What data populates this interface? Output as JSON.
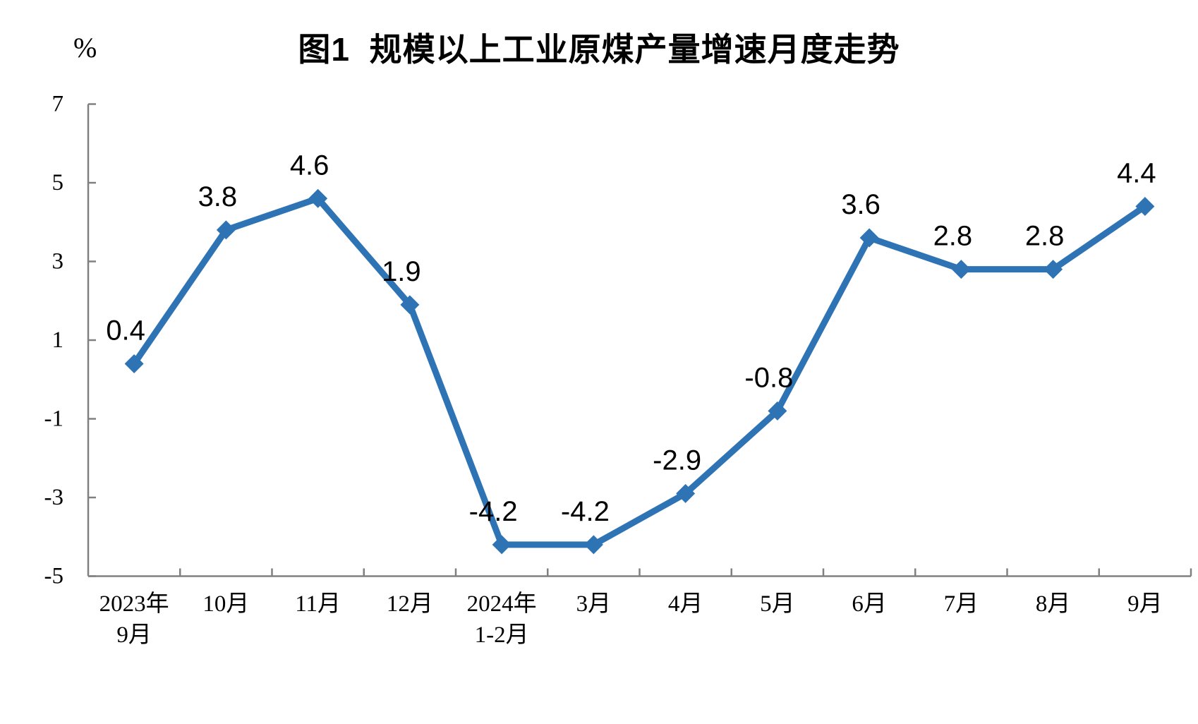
{
  "chart_data": {
    "type": "line",
    "title": "图1  规模以上工业原煤产量增速月度走势",
    "unit_label": "%",
    "categories": [
      "2023年9月",
      "10月",
      "11月",
      "12月",
      "2024年1-2月",
      "3月",
      "4月",
      "5月",
      "6月",
      "7月",
      "8月",
      "9月"
    ],
    "category_label_lines": [
      [
        "2023年",
        "9月"
      ],
      [
        "10月"
      ],
      [
        "11月"
      ],
      [
        "12月"
      ],
      [
        "2024年",
        "1-2月"
      ],
      [
        "3月"
      ],
      [
        "4月"
      ],
      [
        "5月"
      ],
      [
        "6月"
      ],
      [
        "7月"
      ],
      [
        "8月"
      ],
      [
        "9月"
      ]
    ],
    "values": [
      0.4,
      3.8,
      4.6,
      1.9,
      -4.2,
      -4.2,
      -2.9,
      -0.8,
      3.6,
      2.8,
      2.8,
      4.4
    ],
    "data_labels": [
      "0.4",
      "3.8",
      "4.6",
      "1.9",
      "-4.2",
      "-4.2",
      "-2.9",
      "-0.8",
      "3.6",
      "2.8",
      "2.8",
      "4.4"
    ],
    "xlabel": "",
    "ylabel": "%",
    "y_ticks": [
      7,
      5,
      3,
      1,
      -1,
      -3,
      -5
    ],
    "ylim": [
      -5,
      7
    ],
    "grid": false,
    "legend": "none",
    "marker": "diamond",
    "colors": {
      "line": "#2E74B5",
      "axis": "#808080",
      "text": "#000000"
    }
  }
}
